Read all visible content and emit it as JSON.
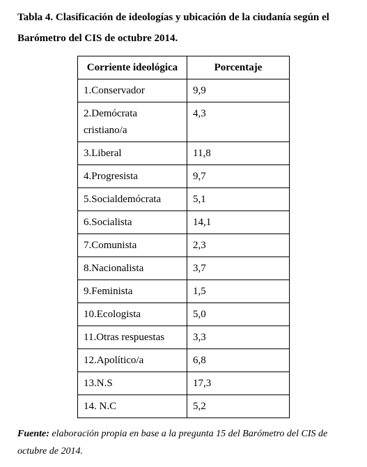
{
  "title": "Tabla 4. Clasificación de ideologías y ubicación de la ciudanía según el Barómetro del CIS de octubre 2014.",
  "table": {
    "headers": {
      "col1": "Corriente ideológica",
      "col2": "Porcentaje"
    },
    "rows": [
      {
        "label": "1.Conservador",
        "value": "9,9"
      },
      {
        "label": "2.Demócrata cristiano/a",
        "value": "4,3"
      },
      {
        "label": "3.Liberal",
        "value": "11,8"
      },
      {
        "label": "4.Progresista",
        "value": "9,7"
      },
      {
        "label": "5.Socialdemócrata",
        "value": "5,1"
      },
      {
        "label": "6.Socialista",
        "value": "14,1"
      },
      {
        "label": "7.Comunista",
        "value": "2,3"
      },
      {
        "label": "8.Nacionalista",
        "value": "3,7"
      },
      {
        "label": "9.Feminista",
        "value": "1,5"
      },
      {
        "label": "10.Ecologista",
        "value": "5,0"
      },
      {
        "label": "11.Otras respuestas",
        "value": "3,3"
      },
      {
        "label": "12.Apolítico/a",
        "value": "6,8"
      },
      {
        "label": "13.N.S",
        "value": "17,3"
      },
      {
        "label": "14. N.C",
        "value": "5,2"
      }
    ]
  },
  "source": {
    "label": "Fuente:",
    "text": " elaboración propia en base a la pregunta 15 del Barómetro del CIS de octubre de 2014."
  }
}
